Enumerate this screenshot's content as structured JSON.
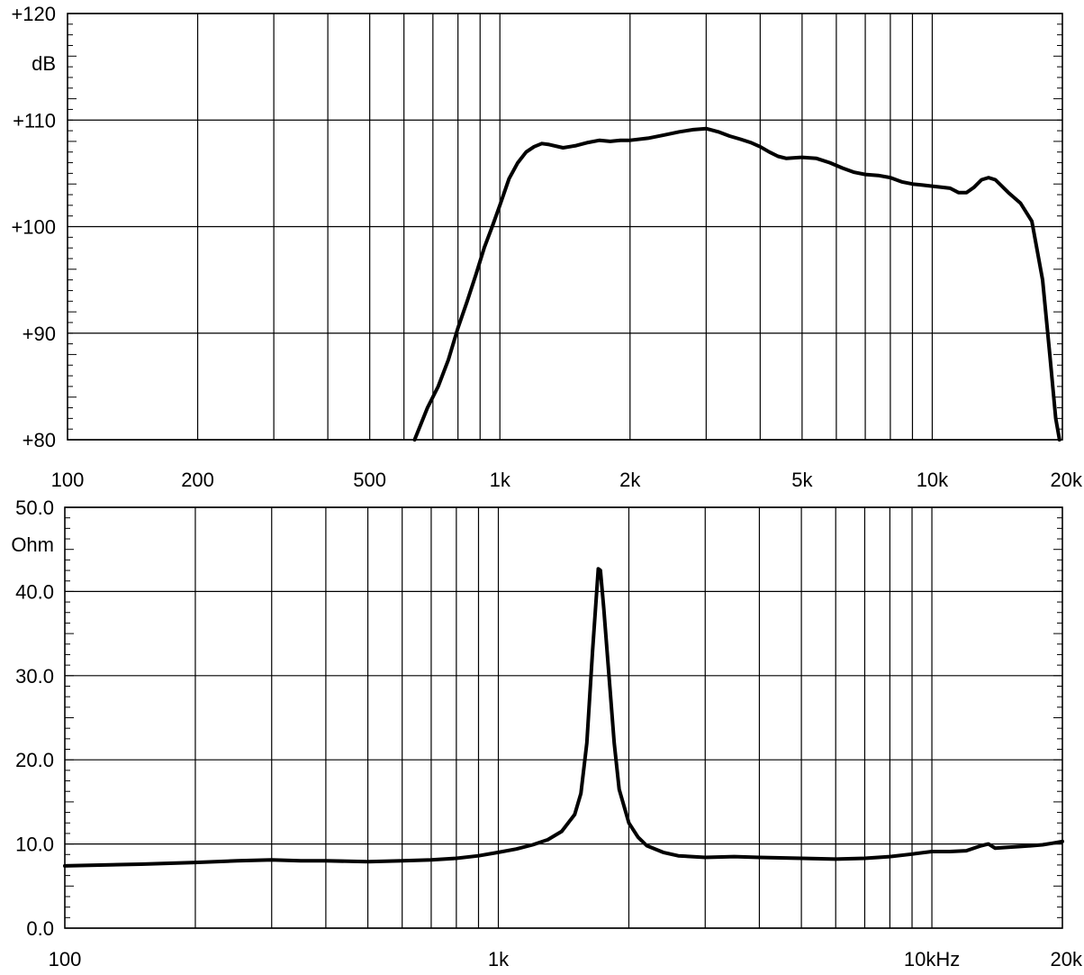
{
  "chart_data": [
    {
      "type": "line",
      "name": "frequency-response",
      "x_scale": "log",
      "xlim": [
        100,
        20000
      ],
      "ylim": [
        80,
        120
      ],
      "ylabel": "dB",
      "y_ticks": [
        {
          "value": 120,
          "label": "+120"
        },
        {
          "value": 110,
          "label": "+110"
        },
        {
          "value": 100,
          "label": "+100"
        },
        {
          "value": 90,
          "label": "+90"
        },
        {
          "value": 80,
          "label": "+80"
        }
      ],
      "x_ticks": [
        {
          "value": 100,
          "label": "100"
        },
        {
          "value": 200,
          "label": "200"
        },
        {
          "value": 500,
          "label": "500"
        },
        {
          "value": 1000,
          "label": "1k"
        },
        {
          "value": 2000,
          "label": "2k"
        },
        {
          "value": 5000,
          "label": "5k"
        },
        {
          "value": 10000,
          "label": "10k"
        },
        {
          "value": 20000,
          "label": "20k"
        }
      ],
      "grid": true,
      "series": [
        {
          "color": "#000000",
          "points": [
            [
              635,
              80
            ],
            [
              680,
              83
            ],
            [
              720,
              85
            ],
            [
              760,
              87.5
            ],
            [
              800,
              90.5
            ],
            [
              840,
              93
            ],
            [
              880,
              95.5
            ],
            [
              920,
              98
            ],
            [
              960,
              100
            ],
            [
              1000,
              102
            ],
            [
              1050,
              104.5
            ],
            [
              1100,
              106
            ],
            [
              1150,
              107
            ],
            [
              1200,
              107.5
            ],
            [
              1250,
              107.8
            ],
            [
              1300,
              107.7
            ],
            [
              1400,
              107.4
            ],
            [
              1500,
              107.6
            ],
            [
              1600,
              107.9
            ],
            [
              1700,
              108.1
            ],
            [
              1800,
              108
            ],
            [
              1900,
              108.1
            ],
            [
              2000,
              108.1
            ],
            [
              2200,
              108.3
            ],
            [
              2400,
              108.6
            ],
            [
              2600,
              108.9
            ],
            [
              2800,
              109.1
            ],
            [
              3000,
              109.2
            ],
            [
              3200,
              108.9
            ],
            [
              3400,
              108.5
            ],
            [
              3600,
              108.2
            ],
            [
              3800,
              107.9
            ],
            [
              4000,
              107.5
            ],
            [
              4200,
              107
            ],
            [
              4400,
              106.6
            ],
            [
              4600,
              106.4
            ],
            [
              5000,
              106.5
            ],
            [
              5400,
              106.4
            ],
            [
              5800,
              106
            ],
            [
              6200,
              105.5
            ],
            [
              6600,
              105.1
            ],
            [
              7000,
              104.9
            ],
            [
              7500,
              104.8
            ],
            [
              8000,
              104.6
            ],
            [
              8500,
              104.2
            ],
            [
              9000,
              104
            ],
            [
              9500,
              103.9
            ],
            [
              10000,
              103.8
            ],
            [
              10500,
              103.7
            ],
            [
              11000,
              103.6
            ],
            [
              11500,
              103.2
            ],
            [
              12000,
              103.2
            ],
            [
              12500,
              103.7
            ],
            [
              13000,
              104.4
            ],
            [
              13500,
              104.6
            ],
            [
              14000,
              104.4
            ],
            [
              15000,
              103.2
            ],
            [
              16000,
              102.2
            ],
            [
              17000,
              100.5
            ],
            [
              18000,
              95
            ],
            [
              18700,
              88
            ],
            [
              19300,
              82
            ],
            [
              19700,
              80
            ]
          ]
        }
      ]
    },
    {
      "type": "line",
      "name": "impedance",
      "x_scale": "log",
      "xlim": [
        100,
        20000
      ],
      "ylim": [
        0,
        50
      ],
      "ylabel": "Ohm",
      "y_ticks": [
        {
          "value": 50,
          "label": "50.0"
        },
        {
          "value": 40,
          "label": "40.0"
        },
        {
          "value": 30,
          "label": "30.0"
        },
        {
          "value": 20,
          "label": "20.0"
        },
        {
          "value": 10,
          "label": "10.0"
        },
        {
          "value": 0,
          "label": "0.0"
        }
      ],
      "x_ticks": [
        {
          "value": 100,
          "label": "100"
        },
        {
          "value": 1000,
          "label": "1k"
        },
        {
          "value": 10000,
          "label": "10kHz"
        },
        {
          "value": 20000,
          "label": "20k"
        }
      ],
      "grid": true,
      "series": [
        {
          "color": "#000000",
          "points": [
            [
              100,
              7.4
            ],
            [
              150,
              7.6
            ],
            [
              200,
              7.8
            ],
            [
              250,
              8.0
            ],
            [
              300,
              8.1
            ],
            [
              350,
              8.0
            ],
            [
              400,
              8.0
            ],
            [
              500,
              7.9
            ],
            [
              600,
              8.0
            ],
            [
              700,
              8.1
            ],
            [
              800,
              8.3
            ],
            [
              900,
              8.6
            ],
            [
              1000,
              9.0
            ],
            [
              1100,
              9.4
            ],
            [
              1200,
              9.9
            ],
            [
              1300,
              10.5
            ],
            [
              1400,
              11.5
            ],
            [
              1500,
              13.5
            ],
            [
              1550,
              16
            ],
            [
              1600,
              22
            ],
            [
              1650,
              33
            ],
            [
              1700,
              42.7
            ],
            [
              1720,
              42.5
            ],
            [
              1750,
              38
            ],
            [
              1800,
              30
            ],
            [
              1850,
              22
            ],
            [
              1900,
              16.5
            ],
            [
              2000,
              12.5
            ],
            [
              2100,
              10.8
            ],
            [
              2200,
              9.8
            ],
            [
              2400,
              9.0
            ],
            [
              2600,
              8.6
            ],
            [
              3000,
              8.4
            ],
            [
              3500,
              8.5
            ],
            [
              4000,
              8.4
            ],
            [
              5000,
              8.3
            ],
            [
              6000,
              8.2
            ],
            [
              7000,
              8.3
            ],
            [
              8000,
              8.5
            ],
            [
              9000,
              8.8
            ],
            [
              10000,
              9.1
            ],
            [
              11000,
              9.1
            ],
            [
              12000,
              9.2
            ],
            [
              13000,
              9.8
            ],
            [
              13500,
              10.0
            ],
            [
              14000,
              9.5
            ],
            [
              15000,
              9.6
            ],
            [
              16000,
              9.7
            ],
            [
              17000,
              9.8
            ],
            [
              18000,
              9.9
            ],
            [
              19000,
              10.1
            ],
            [
              20000,
              10.3
            ]
          ]
        }
      ]
    }
  ]
}
